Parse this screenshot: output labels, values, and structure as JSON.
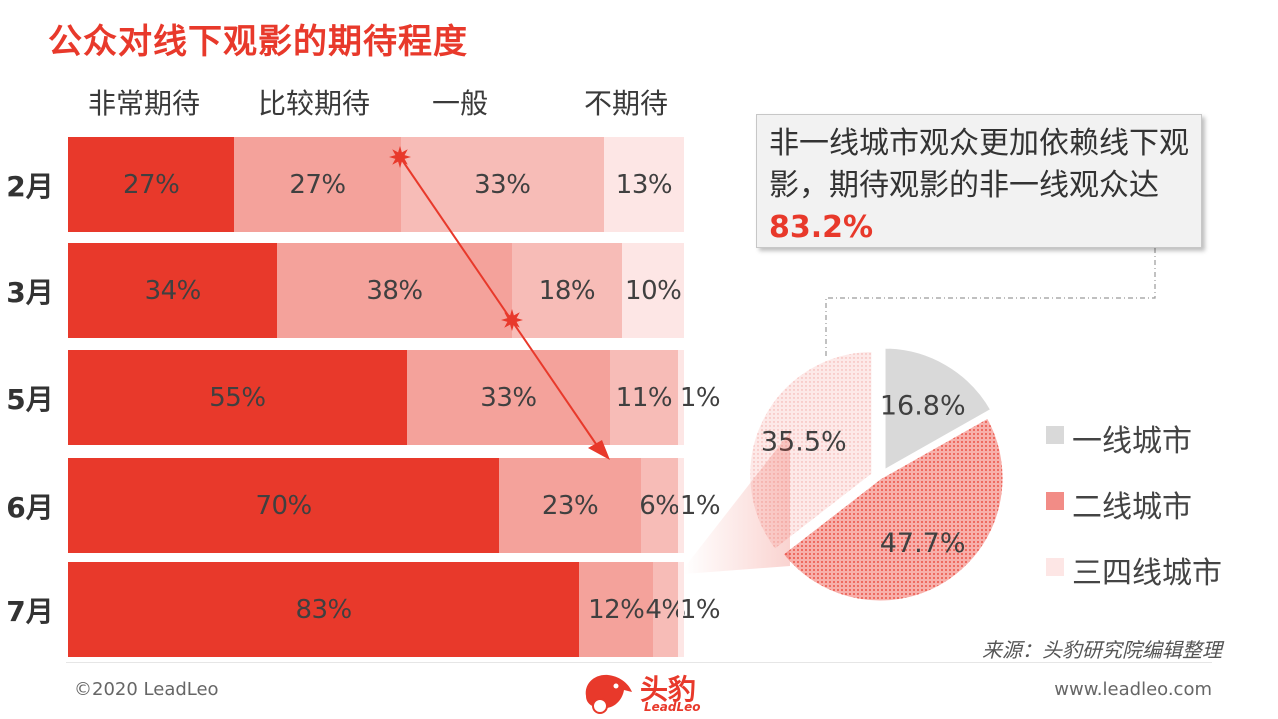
{
  "title": "公众对线下观影的期待程度",
  "colors": {
    "accent": "#e8392b",
    "seg1": "#e8392b",
    "seg2": "#f4a29b",
    "seg3": "#f7bcb7",
    "seg4": "#fde6e5",
    "pie1": "#d9d9d9",
    "pie2": "#f28c86",
    "pie3": "#fde6e5"
  },
  "chart_data": [
    {
      "type": "bar",
      "orientation": "horizontal-stacked-100",
      "categories": [
        "2月",
        "3月",
        "5月",
        "6月",
        "7月"
      ],
      "series": [
        {
          "name": "非常期待",
          "values": [
            27,
            34,
            55,
            70,
            83
          ]
        },
        {
          "name": "比较期待",
          "values": [
            27,
            38,
            33,
            23,
            12
          ]
        },
        {
          "name": "一般",
          "values": [
            33,
            18,
            11,
            6,
            4
          ]
        },
        {
          "name": "不期待",
          "values": [
            13,
            10,
            1,
            1,
            1
          ]
        }
      ],
      "labels": [
        [
          "27%",
          "27%",
          "33%",
          "13%"
        ],
        [
          "34%",
          "38%",
          "18%",
          "10%"
        ],
        [
          "55%",
          "33%",
          "11%",
          "1%"
        ],
        [
          "70%",
          "23%",
          "6%",
          "1%"
        ],
        [
          "83%",
          "12%",
          "4%",
          "1%"
        ]
      ],
      "legend_placement": "top"
    },
    {
      "type": "pie",
      "categories": [
        "一线城市",
        "二线城市",
        "三四线城市"
      ],
      "values": [
        16.8,
        47.7,
        35.5
      ],
      "labels": [
        "16.8%",
        "47.7%",
        "35.5%"
      ],
      "legend_placement": "right"
    }
  ],
  "callout": {
    "text": "非一线城市观众更加依赖线下观影，期待观影的非一线观众达",
    "highlight": "83.2%"
  },
  "source": "来源：头豹研究院编辑整理",
  "footer": {
    "copyright": "©2020 LeadLeo",
    "website": "www.leadleo.com",
    "brand_name": "头豹",
    "brand_sub": "LeadLeo"
  }
}
